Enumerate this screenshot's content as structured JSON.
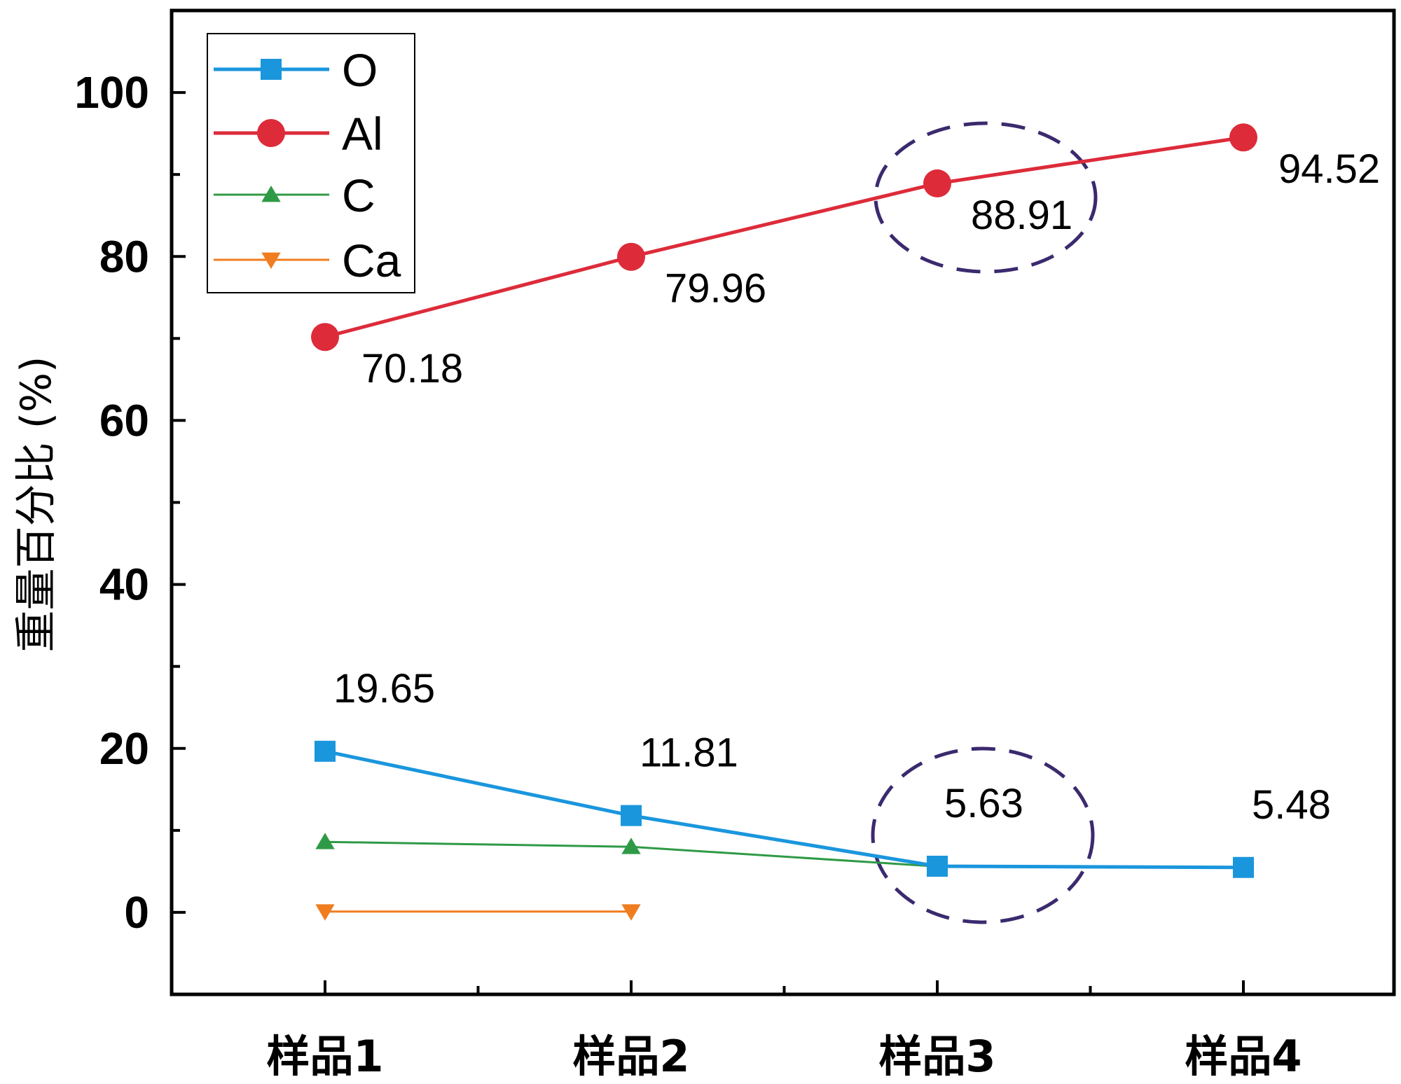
{
  "chart_data": {
    "type": "line",
    "ylabel": "重量百分比 (%)",
    "xlabel": "",
    "categories": [
      "样品1",
      "样品2",
      "样品3",
      "样品4"
    ],
    "ylim": [
      -10,
      110
    ],
    "yticks": [
      0,
      20,
      40,
      60,
      80,
      100
    ],
    "grid": false,
    "legend_position": "top-left",
    "series": [
      {
        "name": "O",
        "values": [
          19.65,
          11.81,
          5.63,
          5.48
        ],
        "color": "#1a96dd",
        "marker": "square",
        "labels": [
          "19.65",
          "11.81",
          "5.63",
          "5.48"
        ]
      },
      {
        "name": "Al",
        "values": [
          70.18,
          79.96,
          88.91,
          94.52
        ],
        "color": "#dd2b3a",
        "marker": "circle",
        "labels": [
          "70.18",
          "79.96",
          "88.91",
          "94.52"
        ]
      },
      {
        "name": "C",
        "values": [
          8.6,
          8.0,
          5.6,
          null
        ],
        "color": "#2f9a46",
        "marker": "triangle-up",
        "labels": []
      },
      {
        "name": "Ca",
        "values": [
          0.1,
          0.1,
          null,
          null
        ],
        "color": "#f07d1f",
        "marker": "triangle-down",
        "labels": []
      }
    ],
    "annotations": [
      {
        "type": "dashed-ellipse",
        "target": "样品3 Al",
        "color": "#3b2a6e"
      },
      {
        "type": "dashed-ellipse",
        "target": "样品3 O",
        "color": "#3b2a6e"
      }
    ]
  }
}
